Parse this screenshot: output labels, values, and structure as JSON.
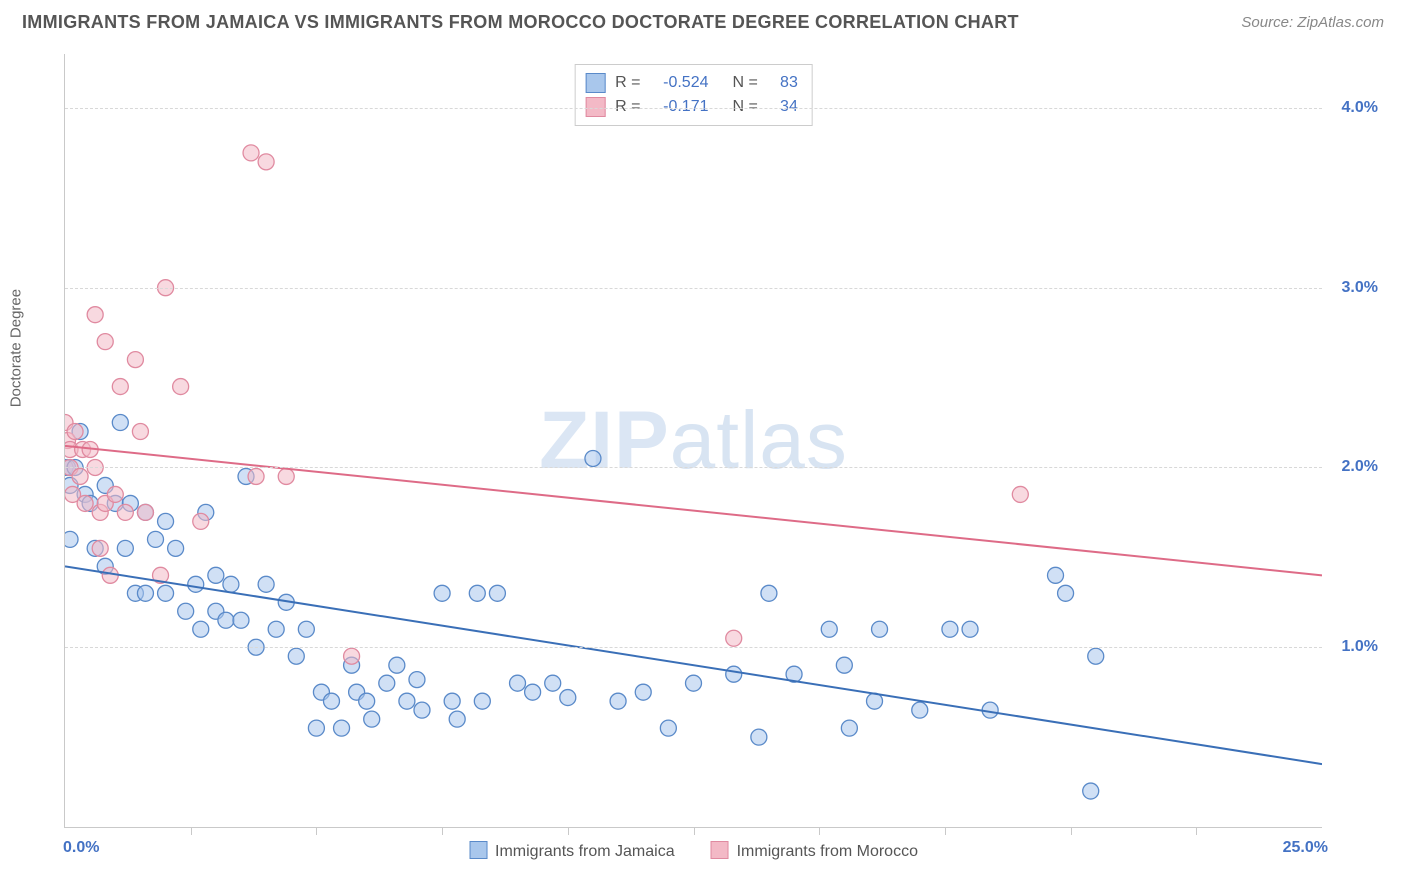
{
  "header": {
    "title": "IMMIGRANTS FROM JAMAICA VS IMMIGRANTS FROM MOROCCO DOCTORATE DEGREE CORRELATION CHART",
    "source_prefix": "Source: ",
    "source": "ZipAtlas.com"
  },
  "chart": {
    "type": "scatter",
    "y_axis_label": "Doctorate Degree",
    "xlim": [
      0,
      25
    ],
    "ylim": [
      0,
      4.3
    ],
    "x_min_label": "0.0%",
    "x_max_label": "25.0%",
    "x_tick_positions": [
      2.5,
      5,
      7.5,
      10,
      12.5,
      15,
      17.5,
      20,
      22.5
    ],
    "y_ticks": [
      {
        "v": 1.0,
        "label": "1.0%"
      },
      {
        "v": 2.0,
        "label": "2.0%"
      },
      {
        "v": 3.0,
        "label": "3.0%"
      },
      {
        "v": 4.0,
        "label": "4.0%"
      }
    ],
    "background_color": "#ffffff",
    "grid_color": "#d8d8d8",
    "axis_color": "#c9c9c9",
    "marker_radius": 8,
    "marker_stroke_width": 1.3,
    "line_width": 2,
    "series": [
      {
        "name": "Immigrants from Jamaica",
        "fill_color": "#a9c7ec",
        "stroke_color": "#5a8ac9",
        "fill_opacity": 0.55,
        "trend": {
          "x1": 0,
          "y1": 1.45,
          "x2": 25,
          "y2": 0.35,
          "color": "#3a6fb7"
        },
        "R": "-0.524",
        "N": "83",
        "points": [
          [
            0.0,
            2.0
          ],
          [
            0.05,
            2.0
          ],
          [
            0.1,
            1.9
          ],
          [
            0.1,
            1.6
          ],
          [
            0.2,
            2.0
          ],
          [
            0.3,
            2.2
          ],
          [
            0.4,
            1.85
          ],
          [
            0.5,
            1.8
          ],
          [
            0.6,
            1.55
          ],
          [
            0.8,
            1.9
          ],
          [
            0.8,
            1.45
          ],
          [
            1.0,
            1.8
          ],
          [
            1.1,
            2.25
          ],
          [
            1.2,
            1.55
          ],
          [
            1.3,
            1.8
          ],
          [
            1.4,
            1.3
          ],
          [
            1.6,
            1.75
          ],
          [
            1.6,
            1.3
          ],
          [
            1.8,
            1.6
          ],
          [
            2.0,
            1.7
          ],
          [
            2.0,
            1.3
          ],
          [
            2.2,
            1.55
          ],
          [
            2.4,
            1.2
          ],
          [
            2.6,
            1.35
          ],
          [
            2.7,
            1.1
          ],
          [
            2.8,
            1.75
          ],
          [
            3.0,
            1.4
          ],
          [
            3.0,
            1.2
          ],
          [
            3.2,
            1.15
          ],
          [
            3.3,
            1.35
          ],
          [
            3.5,
            1.15
          ],
          [
            3.6,
            1.95
          ],
          [
            3.8,
            1.0
          ],
          [
            4.0,
            1.35
          ],
          [
            4.2,
            1.1
          ],
          [
            4.4,
            1.25
          ],
          [
            4.6,
            0.95
          ],
          [
            4.8,
            1.1
          ],
          [
            5.0,
            0.55
          ],
          [
            5.1,
            0.75
          ],
          [
            5.3,
            0.7
          ],
          [
            5.5,
            0.55
          ],
          [
            5.7,
            0.9
          ],
          [
            5.8,
            0.75
          ],
          [
            6.0,
            0.7
          ],
          [
            6.1,
            0.6
          ],
          [
            6.4,
            0.8
          ],
          [
            6.6,
            0.9
          ],
          [
            6.8,
            0.7
          ],
          [
            7.0,
            0.82
          ],
          [
            7.1,
            0.65
          ],
          [
            7.5,
            1.3
          ],
          [
            7.7,
            0.7
          ],
          [
            7.8,
            0.6
          ],
          [
            8.2,
            1.3
          ],
          [
            8.3,
            0.7
          ],
          [
            8.6,
            1.3
          ],
          [
            9.0,
            0.8
          ],
          [
            9.3,
            0.75
          ],
          [
            9.7,
            0.8
          ],
          [
            10.0,
            0.72
          ],
          [
            10.5,
            2.05
          ],
          [
            11.0,
            0.7
          ],
          [
            11.5,
            0.75
          ],
          [
            12.0,
            0.55
          ],
          [
            12.5,
            0.8
          ],
          [
            13.3,
            0.85
          ],
          [
            13.8,
            0.5
          ],
          [
            14.0,
            1.3
          ],
          [
            14.5,
            0.85
          ],
          [
            15.2,
            1.1
          ],
          [
            15.5,
            0.9
          ],
          [
            15.6,
            0.55
          ],
          [
            16.1,
            0.7
          ],
          [
            16.2,
            1.1
          ],
          [
            17.0,
            0.65
          ],
          [
            17.6,
            1.1
          ],
          [
            18.0,
            1.1
          ],
          [
            18.4,
            0.65
          ],
          [
            19.7,
            1.4
          ],
          [
            19.9,
            1.3
          ],
          [
            20.4,
            0.2
          ],
          [
            20.5,
            0.95
          ]
        ]
      },
      {
        "name": "Immigrants from Morocco",
        "fill_color": "#f3b9c6",
        "stroke_color": "#e08aa0",
        "fill_opacity": 0.55,
        "trend": {
          "x1": 0,
          "y1": 2.12,
          "x2": 25,
          "y2": 1.4,
          "color": "#de6b87"
        },
        "R": "-0.171",
        "N": "34",
        "points": [
          [
            0.0,
            2.25
          ],
          [
            0.05,
            2.15
          ],
          [
            0.1,
            2.1
          ],
          [
            0.1,
            2.0
          ],
          [
            0.15,
            1.85
          ],
          [
            0.2,
            2.2
          ],
          [
            0.3,
            1.95
          ],
          [
            0.35,
            2.1
          ],
          [
            0.4,
            1.8
          ],
          [
            0.5,
            2.1
          ],
          [
            0.6,
            2.0
          ],
          [
            0.6,
            2.85
          ],
          [
            0.7,
            1.75
          ],
          [
            0.7,
            1.55
          ],
          [
            0.8,
            1.8
          ],
          [
            0.8,
            2.7
          ],
          [
            0.9,
            1.4
          ],
          [
            1.0,
            1.85
          ],
          [
            1.1,
            2.45
          ],
          [
            1.2,
            1.75
          ],
          [
            1.4,
            2.6
          ],
          [
            1.5,
            2.2
          ],
          [
            1.6,
            1.75
          ],
          [
            1.9,
            1.4
          ],
          [
            2.0,
            3.0
          ],
          [
            2.3,
            2.45
          ],
          [
            2.7,
            1.7
          ],
          [
            3.7,
            3.75
          ],
          [
            3.8,
            1.95
          ],
          [
            4.0,
            3.7
          ],
          [
            4.4,
            1.95
          ],
          [
            5.7,
            0.95
          ],
          [
            13.3,
            1.05
          ],
          [
            19.0,
            1.85
          ]
        ]
      }
    ],
    "bottom_legend": [
      {
        "label": "Immigrants from Jamaica",
        "fill": "#a9c7ec",
        "stroke": "#5a8ac9"
      },
      {
        "label": "Immigrants from Morocco",
        "fill": "#f3b9c6",
        "stroke": "#e08aa0"
      }
    ],
    "watermark": {
      "bold": "ZIP",
      "light": "atlas"
    }
  },
  "corr_legend": {
    "r_label": "R =",
    "n_label": "N ="
  }
}
